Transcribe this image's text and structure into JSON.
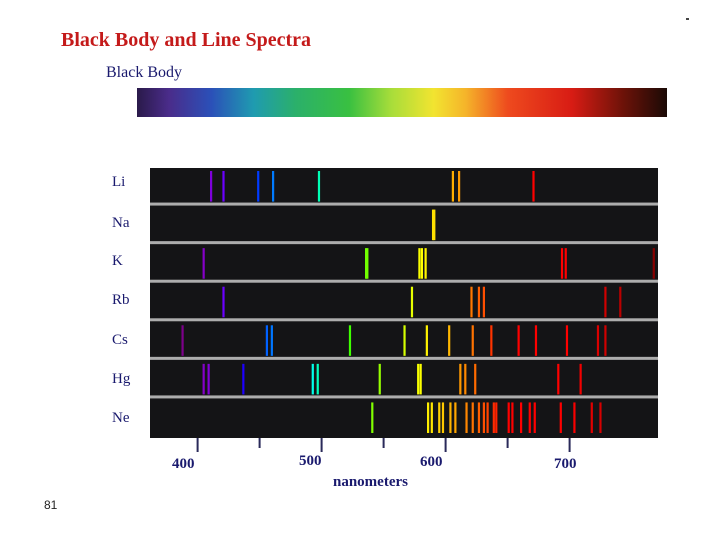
{
  "title": "Black Body and Line Spectra",
  "subtitle": "Black Body",
  "elements": [
    "Li",
    "Na",
    "K",
    "Rb",
    "Cs",
    "Hg",
    "Ne"
  ],
  "axis": {
    "ticks": [
      "400",
      "500",
      "600",
      "700"
    ],
    "xlabel": "nanometers"
  },
  "page_number": "81",
  "chart_data": {
    "type": "spectra",
    "wavelength_range_nm": [
      380,
      780
    ],
    "lines_nm": {
      "Li": [
        410,
        420,
        448,
        460,
        497,
        605,
        610,
        670
      ],
      "Na": [
        589,
        590
      ],
      "K": [
        404,
        535,
        536,
        578,
        580,
        583,
        693,
        696,
        767
      ],
      "Rb": [
        420,
        572,
        620,
        626,
        630,
        728,
        740
      ],
      "Cs": [
        387,
        455,
        459,
        522,
        566,
        584,
        602,
        621,
        636,
        658,
        672,
        697,
        722,
        728
      ],
      "Hg": [
        404,
        408,
        436,
        492,
        496,
        546,
        577,
        579,
        611,
        615,
        623,
        690,
        708
      ],
      "Ne": [
        540,
        585,
        588,
        594,
        597,
        603,
        607,
        616,
        621,
        626,
        630,
        633,
        638,
        640,
        650,
        653,
        660,
        667,
        671,
        692,
        703,
        717,
        724
      ]
    }
  }
}
